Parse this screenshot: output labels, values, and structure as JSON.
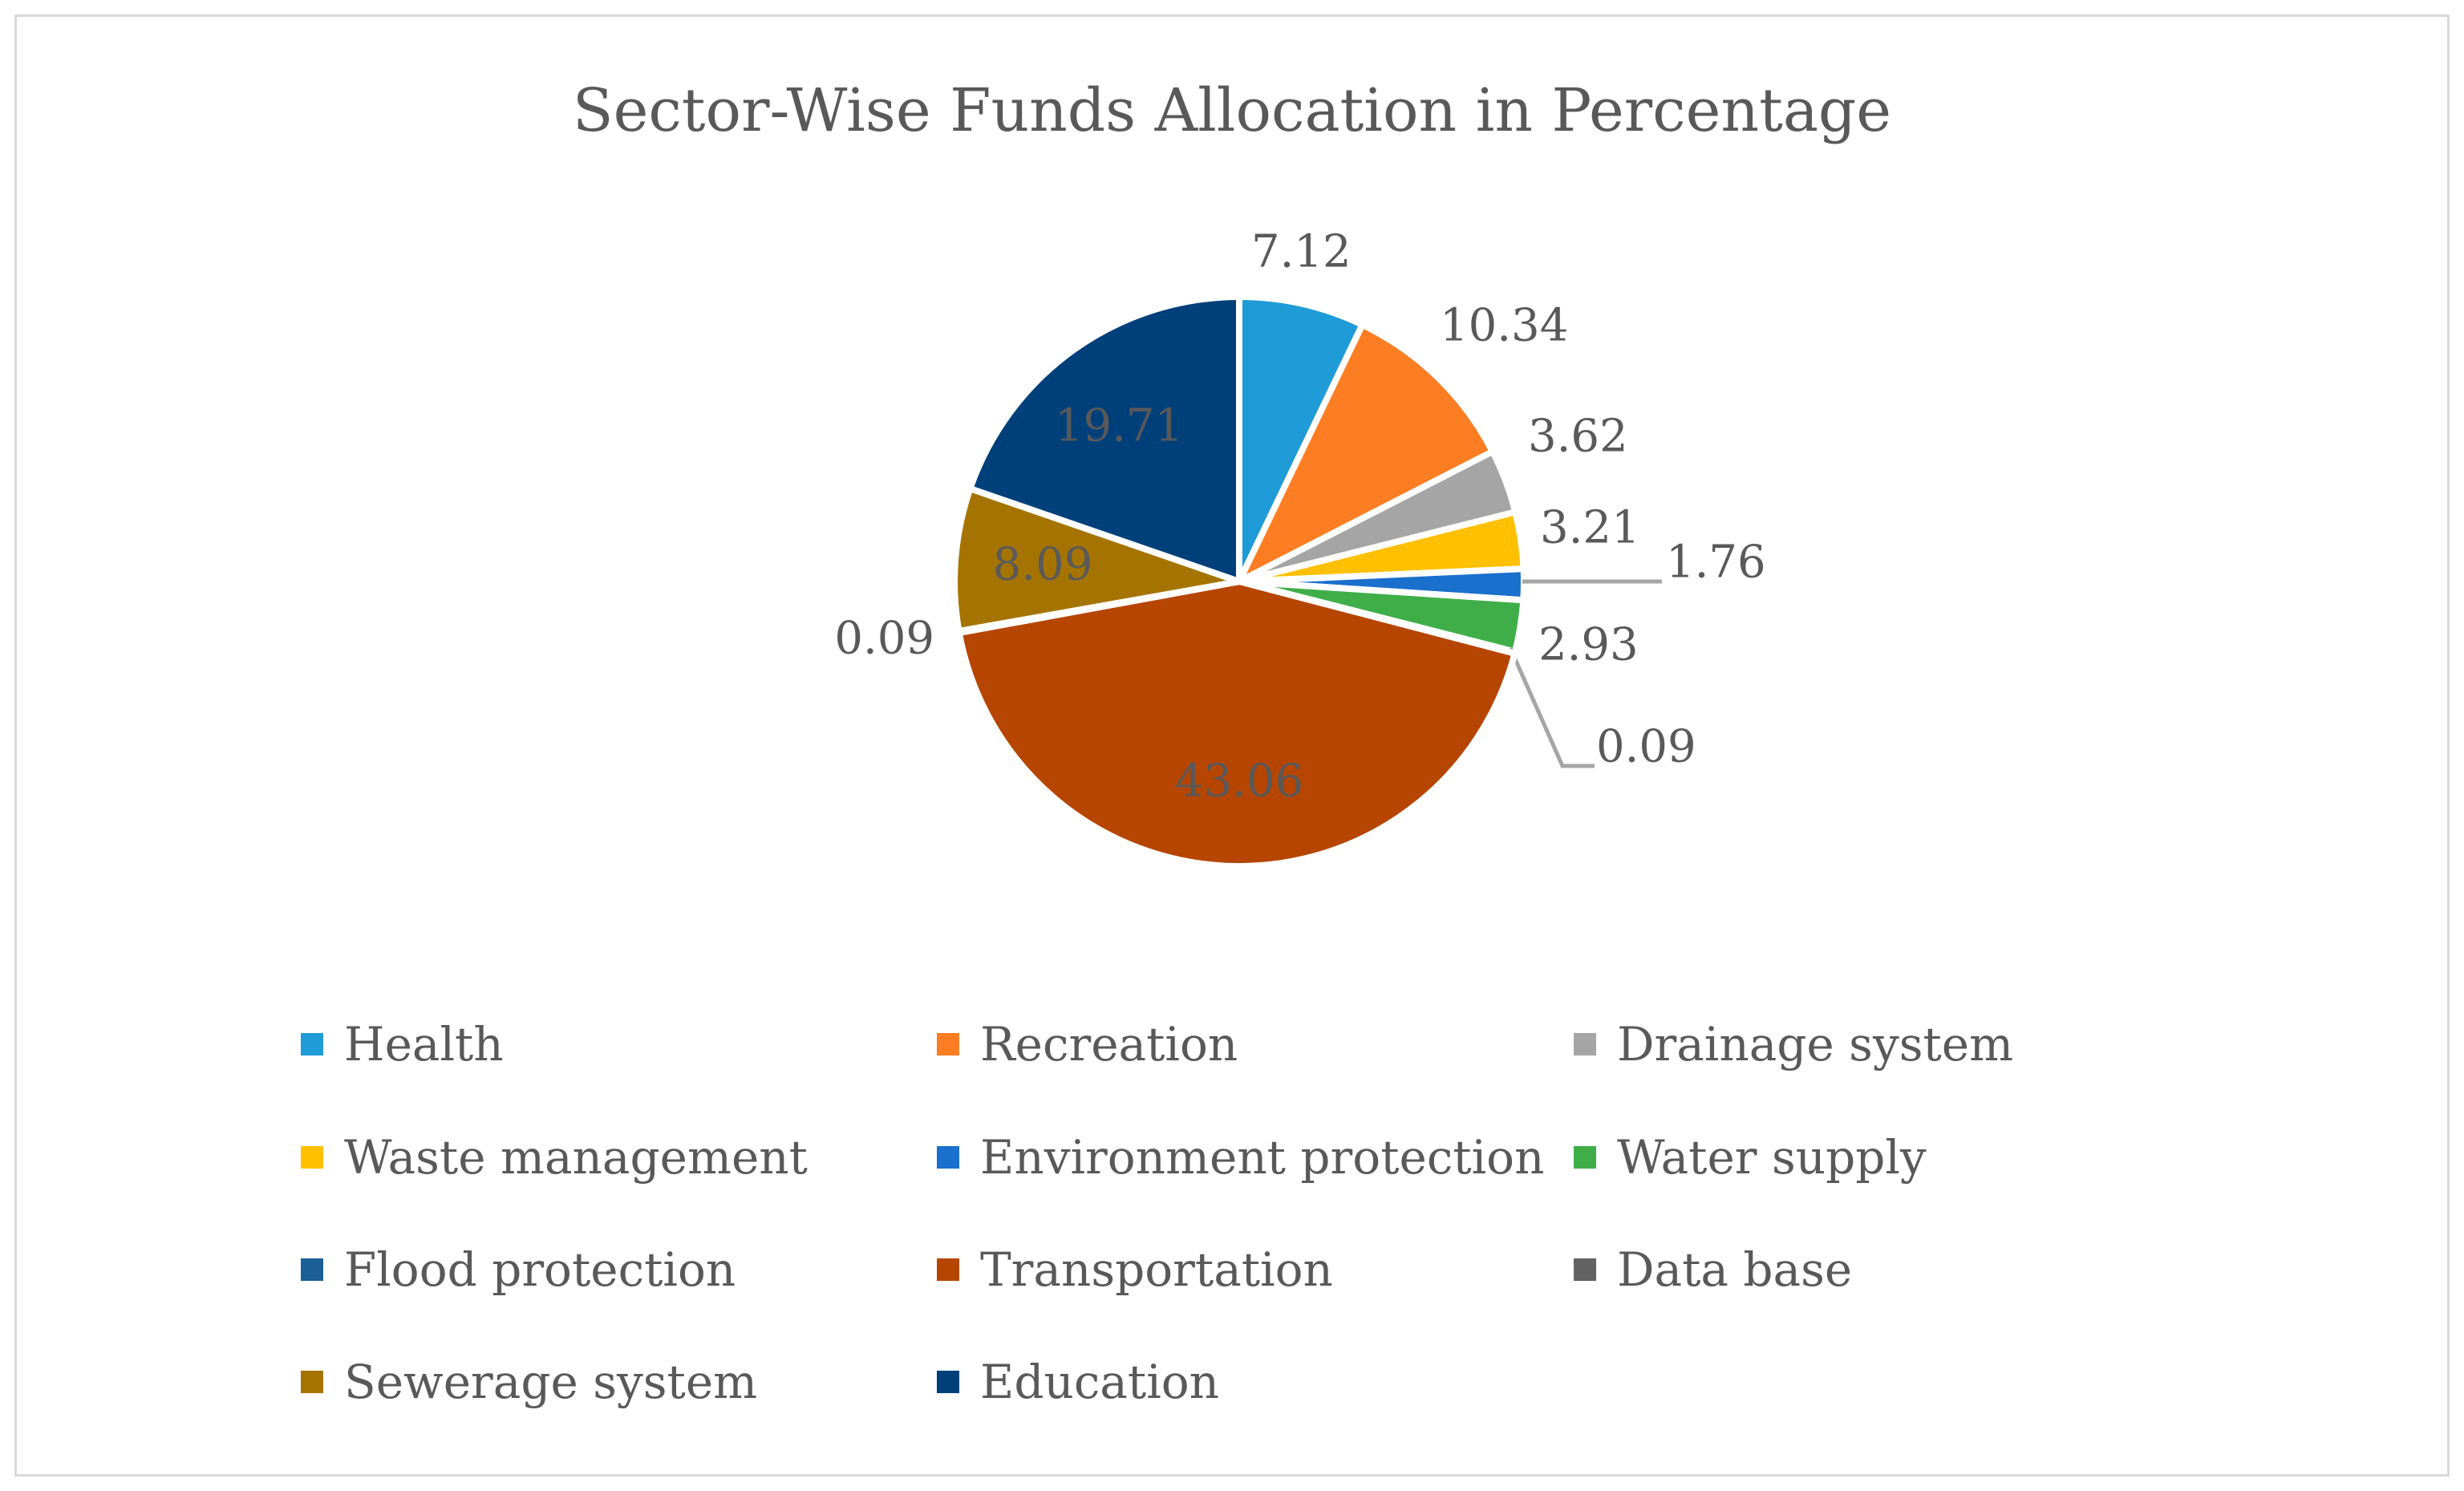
{
  "chart_data": {
    "type": "pie",
    "title": "Sector-Wise Funds Allocation in Percentage",
    "legend_position": "bottom",
    "slices": [
      {
        "name": "Health",
        "value": 7.12,
        "label": "7.12",
        "color": "#1f9bd7"
      },
      {
        "name": "Recreation",
        "value": 10.34,
        "label": "10.34",
        "color": "#fd7e22"
      },
      {
        "name": "Drainage system",
        "value": 3.62,
        "label": "3.62",
        "color": "#a5a5a5"
      },
      {
        "name": "Waste management",
        "value": 3.21,
        "label": "3.21",
        "color": "#ffc000"
      },
      {
        "name": "Environment protection",
        "value": 1.76,
        "label": "1.76",
        "color": "#1b6fcd"
      },
      {
        "name": "Water supply",
        "value": 2.93,
        "label": "2.93",
        "color": "#3fae49"
      },
      {
        "name": "Flood protection",
        "value": 0.09,
        "label": "0.09",
        "color": "#1a5f96"
      },
      {
        "name": "Transportation",
        "value": 43.06,
        "label": "43.06",
        "color": "#b64500"
      },
      {
        "name": "Data base",
        "value": 0.09,
        "label": "0.09",
        "color": "#636363"
      },
      {
        "name": "Sewerage system",
        "value": 8.09,
        "label": "8.09",
        "color": "#a57400"
      },
      {
        "name": "Education",
        "value": 19.71,
        "label": "19.71",
        "color": "#00407a"
      }
    ]
  }
}
